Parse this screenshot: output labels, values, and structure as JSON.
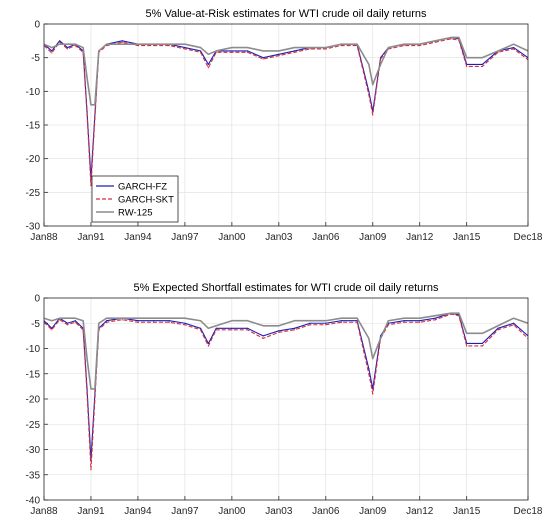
{
  "chart_data": [
    {
      "type": "line",
      "title": "5% Value-at-Risk estimates for WTI crude oil daily returns",
      "xlabel": "",
      "ylabel": "",
      "ylim": [
        -30,
        0
      ],
      "yticks": [
        -30,
        -25,
        -20,
        -15,
        -10,
        -5,
        0
      ],
      "xlim": [
        "Jan88",
        "Dec18"
      ],
      "xticks": [
        "Jan88",
        "Jan91",
        "Jan94",
        "Jan97",
        "Jan00",
        "Jan03",
        "Jan06",
        "Jan09",
        "Jan12",
        "Jan15",
        "Dec18"
      ],
      "grid": true,
      "legend": {
        "placement": "lower-left",
        "entries": [
          "GARCH-FZ",
          "GARCH-SKT",
          "RW-125"
        ]
      },
      "series": [
        {
          "name": "GARCH-FZ",
          "color": "#1f1fb4",
          "style": "solid",
          "x": [
            "Jan88",
            "Jul88",
            "Jan89",
            "Jul89",
            "Jan90",
            "Jul90",
            "Oct90",
            "Jan91",
            "Jul91",
            "Jan92",
            "Jan93",
            "Jan94",
            "Jan95",
            "Jan96",
            "Jan97",
            "Jan98",
            "Jul98",
            "Jan99",
            "Jan00",
            "Jan01",
            "Jan02",
            "Jan03",
            "Jan04",
            "Jan05",
            "Jan06",
            "Jan07",
            "Jan08",
            "Oct08",
            "Jan09",
            "Jul09",
            "Jan10",
            "Jan11",
            "Jan12",
            "Jan13",
            "Jan14",
            "Jul14",
            "Jan15",
            "Jan16",
            "Jan17",
            "Jan18",
            "Dec18"
          ],
          "values": [
            -3,
            -4,
            -2.5,
            -3.5,
            -3,
            -4,
            -13,
            -23,
            -4,
            -3,
            -2.5,
            -3,
            -3,
            -3,
            -3.5,
            -4,
            -6,
            -4,
            -4,
            -4,
            -5,
            -4.5,
            -4,
            -3.5,
            -3.5,
            -3,
            -3,
            -10,
            -13,
            -5,
            -3.5,
            -3,
            -3,
            -2.5,
            -2,
            -2.2,
            -6,
            -6,
            -4,
            -3.5,
            -5
          ]
        },
        {
          "name": "GARCH-SKT",
          "color": "#d32f3f",
          "style": "dashed",
          "x": [
            "Jan88",
            "Jul88",
            "Jan89",
            "Jul89",
            "Jan90",
            "Jul90",
            "Oct90",
            "Jan91",
            "Jul91",
            "Jan92",
            "Jan93",
            "Jan94",
            "Jan95",
            "Jan96",
            "Jan97",
            "Jan98",
            "Jul98",
            "Jan99",
            "Jan00",
            "Jan01",
            "Jan02",
            "Jan03",
            "Jan04",
            "Jan05",
            "Jan06",
            "Jan07",
            "Jan08",
            "Oct08",
            "Jan09",
            "Jul09",
            "Jan10",
            "Jan11",
            "Jan12",
            "Jan13",
            "Jan14",
            "Jul14",
            "Jan15",
            "Jan16",
            "Jan17",
            "Jan18",
            "Dec18"
          ],
          "values": [
            -3.2,
            -4.3,
            -2.7,
            -3.7,
            -3.2,
            -4.2,
            -13.5,
            -24,
            -4.2,
            -3.2,
            -2.7,
            -3.2,
            -3.2,
            -3.2,
            -3.7,
            -4.2,
            -6.5,
            -4.2,
            -4.2,
            -4.2,
            -5.2,
            -4.7,
            -4.2,
            -3.7,
            -3.7,
            -3.2,
            -3.2,
            -10.5,
            -13.5,
            -5.2,
            -3.7,
            -3.2,
            -3.2,
            -2.7,
            -2.2,
            -2.4,
            -6.3,
            -6.3,
            -4.2,
            -3.7,
            -5.3
          ]
        },
        {
          "name": "RW-125",
          "color": "#8c8c8c",
          "style": "solid",
          "x": [
            "Jan88",
            "Jul88",
            "Jan89",
            "Jul89",
            "Jan90",
            "Jul90",
            "Oct90",
            "Jan91",
            "Apr91",
            "Jul91",
            "Jan92",
            "Jan93",
            "Jan94",
            "Jan95",
            "Jan96",
            "Jan97",
            "Jan98",
            "Jul98",
            "Jan99",
            "Jan00",
            "Jan01",
            "Jan02",
            "Jan03",
            "Jan04",
            "Jan05",
            "Jan06",
            "Jan07",
            "Jan08",
            "Oct08",
            "Jan09",
            "Jul09",
            "Jan10",
            "Jan11",
            "Jan12",
            "Jan13",
            "Jan14",
            "Jul14",
            "Jan15",
            "Jan16",
            "Jan17",
            "Jan18",
            "Dec18"
          ],
          "values": [
            -3,
            -3.5,
            -3,
            -3,
            -3,
            -3.5,
            -8,
            -12,
            -12,
            -4,
            -3,
            -3,
            -3,
            -3,
            -3,
            -3,
            -3.5,
            -4.5,
            -4,
            -3.5,
            -3.5,
            -4,
            -4,
            -3.5,
            -3.5,
            -3.5,
            -3,
            -3,
            -6,
            -9,
            -6,
            -3.5,
            -3,
            -3,
            -2.5,
            -2,
            -2,
            -5,
            -5,
            -4,
            -3,
            -4
          ]
        }
      ]
    },
    {
      "type": "line",
      "title": "5% Expected Shortfall estimates for WTI crude oil daily returns",
      "xlabel": "",
      "ylabel": "",
      "ylim": [
        -40,
        0
      ],
      "yticks": [
        -40,
        -35,
        -30,
        -25,
        -20,
        -15,
        -10,
        -5,
        0
      ],
      "xlim": [
        "Jan88",
        "Dec18"
      ],
      "xticks": [
        "Jan88",
        "Jan91",
        "Jan94",
        "Jan97",
        "Jan00",
        "Jan03",
        "Jan06",
        "Jan09",
        "Jan12",
        "Jan15",
        "Dec18"
      ],
      "grid": true,
      "series": [
        {
          "name": "GARCH-FZ",
          "color": "#1f1fb4",
          "style": "solid",
          "x": [
            "Jan88",
            "Jul88",
            "Jan89",
            "Jul89",
            "Jan90",
            "Jul90",
            "Oct90",
            "Jan91",
            "Jul91",
            "Jan92",
            "Jan93",
            "Jan94",
            "Jan95",
            "Jan96",
            "Jan97",
            "Jan98",
            "Jul98",
            "Jan99",
            "Jan00",
            "Jan01",
            "Jan02",
            "Jan03",
            "Jan04",
            "Jan05",
            "Jan06",
            "Jan07",
            "Jan08",
            "Oct08",
            "Jan09",
            "Jul09",
            "Jan10",
            "Jan11",
            "Jan12",
            "Jan13",
            "Jan14",
            "Jul14",
            "Jan15",
            "Jan16",
            "Jan17",
            "Jan18",
            "Dec18"
          ],
          "values": [
            -4.5,
            -6,
            -4,
            -5,
            -4.5,
            -6,
            -18,
            -32,
            -6,
            -4.5,
            -4,
            -4.5,
            -4.5,
            -4.5,
            -5,
            -6,
            -9,
            -6,
            -6,
            -6,
            -7.5,
            -6.5,
            -6,
            -5,
            -5,
            -4.5,
            -4.5,
            -14,
            -18,
            -7.5,
            -5,
            -4.5,
            -4.5,
            -4,
            -3,
            -3.3,
            -9,
            -9,
            -6,
            -5,
            -7.5
          ]
        },
        {
          "name": "GARCH-SKT",
          "color": "#d32f3f",
          "style": "dashed",
          "x": [
            "Jan88",
            "Jul88",
            "Jan89",
            "Jul89",
            "Jan90",
            "Jul90",
            "Oct90",
            "Jan91",
            "Jul91",
            "Jan92",
            "Jan93",
            "Jan94",
            "Jan95",
            "Jan96",
            "Jan97",
            "Jan98",
            "Jul98",
            "Jan99",
            "Jan00",
            "Jan01",
            "Jan02",
            "Jan03",
            "Jan04",
            "Jan05",
            "Jan06",
            "Jan07",
            "Jan08",
            "Oct08",
            "Jan09",
            "Jul09",
            "Jan10",
            "Jan11",
            "Jan12",
            "Jan13",
            "Jan14",
            "Jul14",
            "Jan15",
            "Jan16",
            "Jan17",
            "Jan18",
            "Dec18"
          ],
          "values": [
            -4.8,
            -6.3,
            -4.3,
            -5.3,
            -4.8,
            -6.3,
            -19,
            -34,
            -6.3,
            -4.8,
            -4.3,
            -4.8,
            -4.8,
            -4.8,
            -5.3,
            -6.3,
            -9.5,
            -6.3,
            -6.3,
            -6.3,
            -8,
            -6.8,
            -6.3,
            -5.3,
            -5.3,
            -4.8,
            -4.8,
            -15,
            -19,
            -8,
            -5.3,
            -4.8,
            -4.8,
            -4.3,
            -3.2,
            -3.5,
            -9.5,
            -9.5,
            -6.3,
            -5.3,
            -8
          ]
        },
        {
          "name": "RW-125",
          "color": "#8c8c8c",
          "style": "solid",
          "x": [
            "Jan88",
            "Jul88",
            "Jan89",
            "Jul89",
            "Jan90",
            "Jul90",
            "Oct90",
            "Jan91",
            "Apr91",
            "Jul91",
            "Jan92",
            "Jan93",
            "Jan94",
            "Jan95",
            "Jan96",
            "Jan97",
            "Jan98",
            "Jul98",
            "Jan99",
            "Jan00",
            "Jan01",
            "Jan02",
            "Jan03",
            "Jan04",
            "Jan05",
            "Jan06",
            "Jan07",
            "Jan08",
            "Oct08",
            "Jan09",
            "Jul09",
            "Jan10",
            "Jan11",
            "Jan12",
            "Jan13",
            "Jan14",
            "Jul14",
            "Jan15",
            "Jan16",
            "Jan17",
            "Jan18",
            "Dec18"
          ],
          "values": [
            -4,
            -4.5,
            -4,
            -4,
            -4,
            -4.5,
            -12,
            -18,
            -18,
            -5,
            -4,
            -4,
            -4,
            -4,
            -4,
            -4,
            -4.5,
            -6,
            -5.5,
            -4.5,
            -4.5,
            -5.5,
            -5.5,
            -4.5,
            -4.5,
            -4.5,
            -4,
            -4,
            -8,
            -12,
            -8,
            -4.5,
            -4,
            -4,
            -3.5,
            -3,
            -3,
            -7,
            -7,
            -5.5,
            -4,
            -5
          ]
        }
      ]
    }
  ]
}
